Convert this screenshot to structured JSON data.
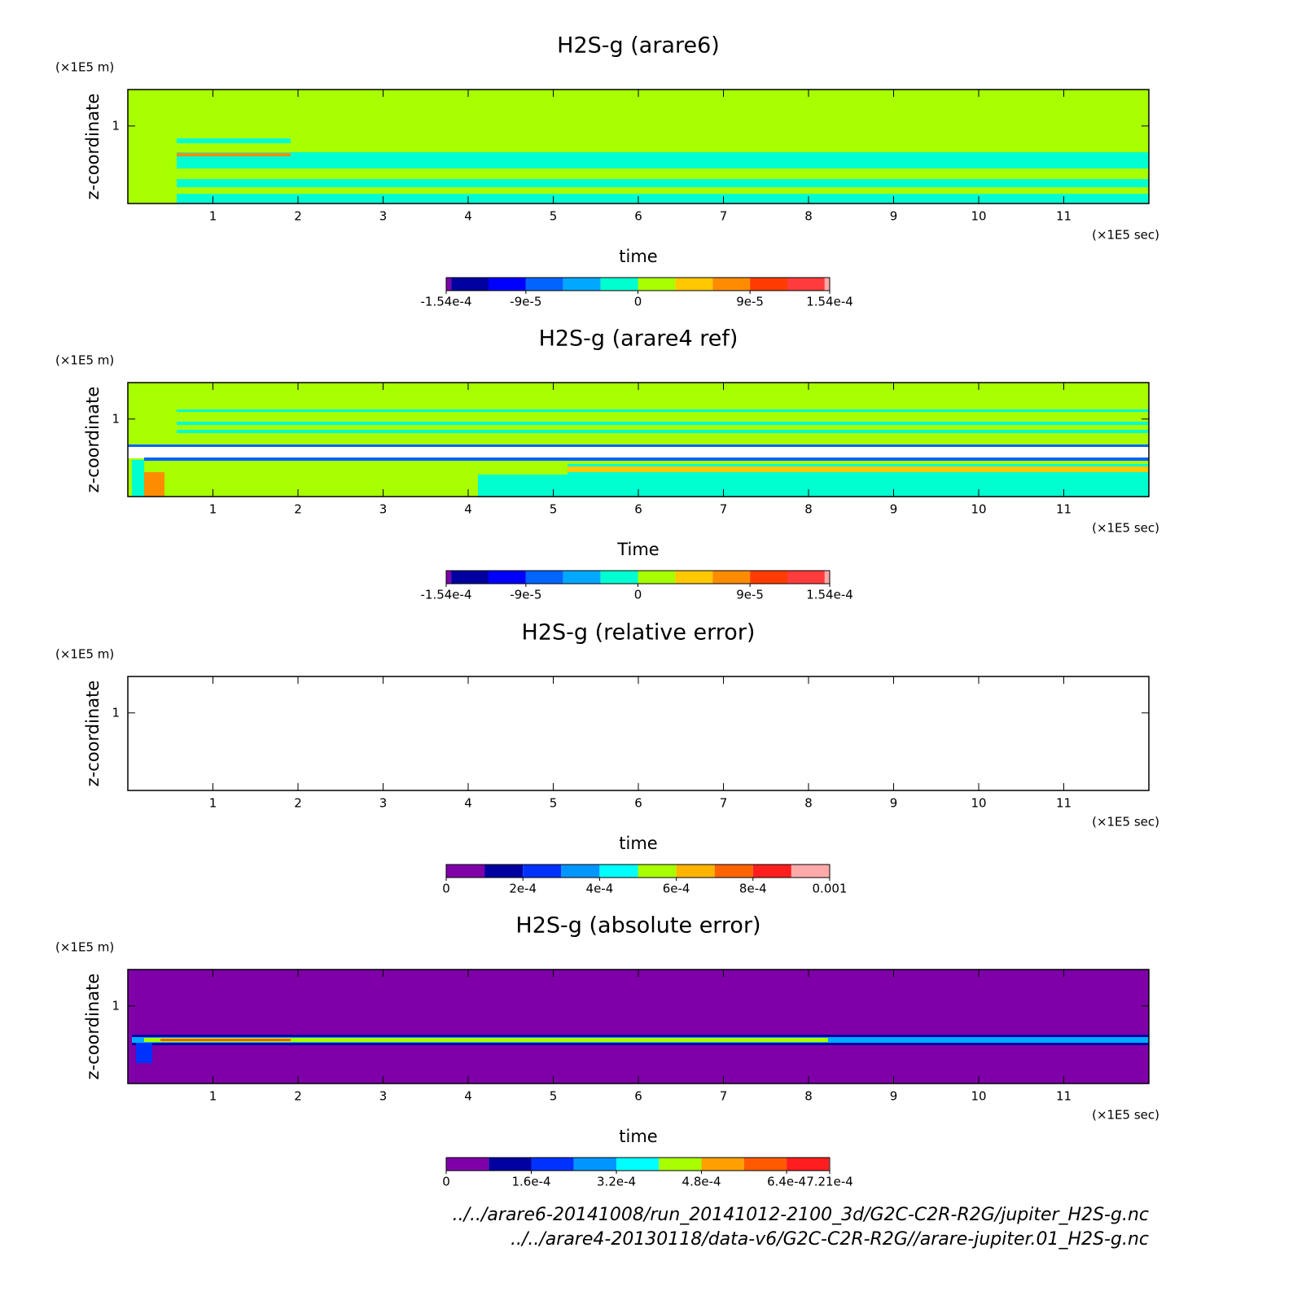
{
  "chart_data": [
    {
      "type": "contour",
      "title": "H2S-g (arare6)",
      "x_label": "time",
      "y_label": "z-coordinate",
      "x_unit": "(×1E5 sec)",
      "y_unit": "(×1E5 m)",
      "xlim": [
        0,
        12
      ],
      "ylim": [
        0,
        1.47
      ],
      "xticks": [
        1,
        2,
        3,
        4,
        5,
        6,
        7,
        8,
        9,
        10,
        11
      ],
      "yticks": [
        1
      ],
      "colorbar": {
        "lim": [
          -0.000154,
          0.000154
        ],
        "levels": [
          -0.000154,
          -0.00015,
          -0.00012,
          -9e-05,
          -6e-05,
          -3e-05,
          0,
          3e-05,
          6e-05,
          9e-05,
          0.00012,
          0.00015,
          0.000154
        ],
        "colors": [
          "#7f00a8",
          "#0000a0",
          "#0000ff",
          "#0064ff",
          "#00a8ff",
          "#00ffd0",
          "#a8ff00",
          "#ffc800",
          "#ff8c00",
          "#ff3c00",
          "#ff3c3c",
          "#ffaaaa"
        ],
        "ticks": [
          {
            "value": -0.000154,
            "label": "-1.54e-4"
          },
          {
            "value": -9e-05,
            "label": "-9e-5"
          },
          0,
          {
            "value": 9e-05,
            "label": "9e-5"
          },
          {
            "value": 0.000154,
            "label": "1.54e-4"
          }
        ]
      }
    },
    {
      "type": "contour",
      "title": "H2S-g (arare4 ref)",
      "x_label": "Time",
      "y_label": "z-coordinate",
      "x_unit": "(×1E5 sec)",
      "y_unit": "(×1E5 m)",
      "xlim": [
        0,
        12
      ],
      "ylim": [
        0,
        1.47
      ],
      "xticks": [
        1,
        2,
        3,
        4,
        5,
        6,
        7,
        8,
        9,
        10,
        11
      ],
      "yticks": [
        1
      ],
      "colorbar": {
        "lim": [
          -0.000154,
          0.000154
        ],
        "levels": [
          -0.000154,
          -0.00015,
          -0.00012,
          -9e-05,
          -6e-05,
          -3e-05,
          0,
          3e-05,
          6e-05,
          9e-05,
          0.00012,
          0.00015,
          0.000154
        ],
        "colors": [
          "#7f00a8",
          "#0000a0",
          "#0000ff",
          "#0064ff",
          "#00a8ff",
          "#00ffd0",
          "#a8ff00",
          "#ffc800",
          "#ff8c00",
          "#ff3c00",
          "#ff3c3c",
          "#ffaaaa"
        ],
        "ticks": [
          {
            "value": -0.000154,
            "label": "-1.54e-4"
          },
          {
            "value": -9e-05,
            "label": "-9e-5"
          },
          0,
          {
            "value": 9e-05,
            "label": "9e-5"
          },
          {
            "value": 0.000154,
            "label": "1.54e-4"
          }
        ]
      }
    },
    {
      "type": "contour",
      "title": "H2S-g (relative error)",
      "x_label": "time",
      "y_label": "z-coordinate",
      "x_unit": "(×1E5 sec)",
      "y_unit": "(×1E5 m)",
      "xlim": [
        0,
        12
      ],
      "ylim": [
        0,
        1.47
      ],
      "xticks": [
        1,
        2,
        3,
        4,
        5,
        6,
        7,
        8,
        9,
        10,
        11
      ],
      "yticks": [
        1
      ],
      "colorbar": {
        "lim": [
          0,
          0.001
        ],
        "levels": [
          0,
          0.0001,
          0.0002,
          0.0003,
          0.0004,
          0.0005,
          0.0006,
          0.0007,
          0.0008,
          0.0009,
          0.001
        ],
        "colors": [
          "#7f00a8",
          "#0000a0",
          "#0032ff",
          "#0096ff",
          "#00ffff",
          "#a8ff00",
          "#ffb400",
          "#ff6400",
          "#ff1e1e",
          "#ffaaaa"
        ],
        "ticks": [
          0,
          {
            "value": 0.0002,
            "label": "2e-4"
          },
          {
            "value": 0.0004,
            "label": "4e-4"
          },
          {
            "value": 0.0006,
            "label": "6e-4"
          },
          {
            "value": 0.0008,
            "label": "8e-4"
          },
          0.001
        ]
      }
    },
    {
      "type": "contour",
      "title": "H2S-g (absolute error)",
      "x_label": "time",
      "y_label": "z-coordinate",
      "x_unit": "(×1E5 sec)",
      "y_unit": "(×1E5 m)",
      "xlim": [
        0,
        12
      ],
      "ylim": [
        0,
        1.47
      ],
      "xticks": [
        1,
        2,
        3,
        4,
        5,
        6,
        7,
        8,
        9,
        10,
        11
      ],
      "yticks": [
        1
      ],
      "colorbar": {
        "lim": [
          0,
          0.000721
        ],
        "levels": [
          0,
          8e-05,
          0.00016,
          0.00024,
          0.00032,
          0.0004,
          0.00048,
          0.00056,
          0.00064,
          0.00072,
          0.000721
        ],
        "colors": [
          "#7f00a8",
          "#0000a0",
          "#0032ff",
          "#0096ff",
          "#00ffff",
          "#a8ff00",
          "#ffa000",
          "#ff5a00",
          "#ff1e1e",
          "#ffaaaa"
        ],
        "ticks": [
          0,
          {
            "value": 0.00016,
            "label": "1.6e-4"
          },
          {
            "value": 0.00032,
            "label": "3.2e-4"
          },
          {
            "value": 0.00048,
            "label": "4.8e-4"
          },
          {
            "value": 0.00064,
            "label": "6.4e-4"
          },
          {
            "value": 0.000721,
            "label": "7.21e-4"
          }
        ]
      }
    }
  ],
  "footer": {
    "lines": [
      "../../arare6-20141008/run_20141012-2100_3d/G2C-C2R-R2G/jupiter_H2S-g.nc",
      "../../arare4-20130118/data-v6/G2C-C2R-R2G//arare-jupiter.01_H2S-g.nc"
    ]
  }
}
